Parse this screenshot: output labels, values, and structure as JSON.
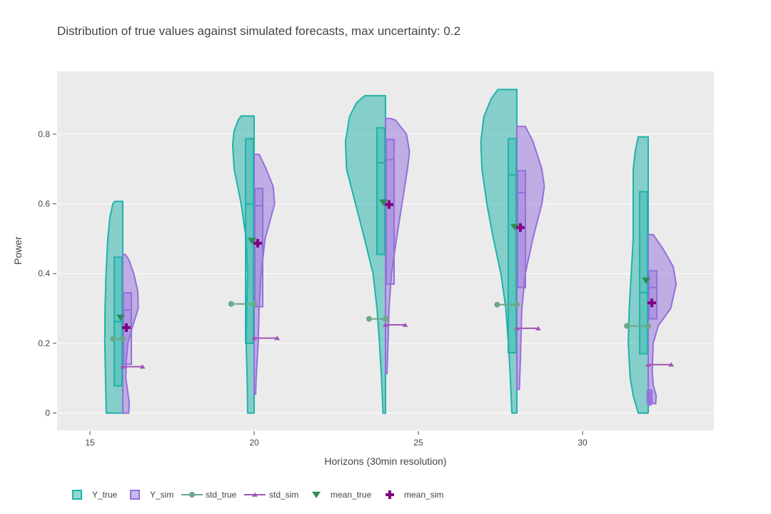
{
  "chart_data": {
    "type": "violin",
    "title": "Distribution of true values against simulated forecasts, max uncertainty: 0.2",
    "xlabel": "Horizons (30min resolution)",
    "ylabel": "Power",
    "xlim": [
      14,
      34
    ],
    "ylim": [
      -0.05,
      0.98
    ],
    "x_ticks": [
      15,
      20,
      25,
      30
    ],
    "y_ticks": [
      0,
      0.2,
      0.4,
      0.6,
      0.8
    ],
    "y_tick_labels": [
      "0",
      "0.2",
      "0.4",
      "0.6",
      "0.8"
    ],
    "grid": true,
    "legend_position": "bottom",
    "colors": {
      "Y_true": "#20b2aa",
      "Y_sim": "#9370db",
      "std_true": "#6aa88a",
      "std_sim": "#a056b8",
      "mean_true": "#2e8b57",
      "mean_sim": "#800080",
      "plot_bg": "#ebebeb"
    },
    "legend": [
      "Y_true",
      "Y_sim",
      "std_true",
      "std_sim",
      "mean_true",
      "mean_sim"
    ],
    "horizons": [
      {
        "x": 16,
        "y_true": {
          "min": 0,
          "max": 0.607,
          "q1": 0.078,
          "median": 0.262,
          "q3": 0.447,
          "density": [
            [
              0,
              0.33
            ],
            [
              0.03,
              0.335
            ],
            [
              0.1,
              0.345
            ],
            [
              0.2,
              0.36
            ],
            [
              0.3,
              0.355
            ],
            [
              0.4,
              0.335
            ],
            [
              0.5,
              0.3
            ],
            [
              0.56,
              0.26
            ],
            [
              0.6,
              0.2
            ],
            [
              0.607,
              0.16
            ]
          ]
        },
        "y_sim": {
          "min": 0,
          "max": 0.455,
          "q1": 0.14,
          "median": 0.295,
          "q3": 0.345,
          "density": [
            [
              0,
              0.12
            ],
            [
              0.03,
              0.13
            ],
            [
              0.06,
              0.1
            ],
            [
              0.1,
              0.06
            ],
            [
              0.15,
              0.07
            ],
            [
              0.2,
              0.1
            ],
            [
              0.25,
              0.2
            ],
            [
              0.3,
              0.31
            ],
            [
              0.35,
              0.3
            ],
            [
              0.4,
              0.22
            ],
            [
              0.44,
              0.12
            ],
            [
              0.455,
              0.05
            ]
          ]
        },
        "std_true": {
          "value": 0.213,
          "x_start": 15.7
        },
        "std_sim": {
          "value": 0.133,
          "x_start": 16.6
        },
        "mean_true": 0.274,
        "mean_sim": 0.245
      },
      {
        "x": 20,
        "y_true": {
          "min": 0,
          "max": 0.852,
          "q1": 0.2,
          "median": 0.6,
          "q3": 0.787,
          "density": [
            [
              0,
              0.13
            ],
            [
              0.1,
              0.14
            ],
            [
              0.2,
              0.16
            ],
            [
              0.3,
              0.15
            ],
            [
              0.4,
              0.13
            ],
            [
              0.5,
              0.16
            ],
            [
              0.6,
              0.26
            ],
            [
              0.7,
              0.4
            ],
            [
              0.77,
              0.43
            ],
            [
              0.81,
              0.4
            ],
            [
              0.84,
              0.32
            ],
            [
              0.852,
              0.26
            ]
          ]
        },
        "y_sim": {
          "min": 0.054,
          "max": 0.742,
          "q1": 0.305,
          "median": 0.595,
          "q3": 0.644,
          "density": [
            [
              0.054,
              0.03
            ],
            [
              0.1,
              0.04
            ],
            [
              0.15,
              0.06
            ],
            [
              0.2,
              0.08
            ],
            [
              0.3,
              0.1
            ],
            [
              0.4,
              0.14
            ],
            [
              0.5,
              0.22
            ],
            [
              0.6,
              0.41
            ],
            [
              0.65,
              0.38
            ],
            [
              0.7,
              0.24
            ],
            [
              0.742,
              0.1
            ]
          ]
        },
        "std_true": {
          "value": 0.313,
          "x_start": 19.3
        },
        "std_sim": {
          "value": 0.215,
          "x_start": 20.7
        },
        "mean_true": 0.494,
        "mean_sim": 0.487
      },
      {
        "x": 24,
        "y_true": {
          "min": 0,
          "max": 0.91,
          "q1": 0.455,
          "median": 0.718,
          "q3": 0.818,
          "density": [
            [
              0,
              0.05
            ],
            [
              0.1,
              0.08
            ],
            [
              0.2,
              0.12
            ],
            [
              0.3,
              0.17
            ],
            [
              0.4,
              0.25
            ],
            [
              0.5,
              0.42
            ],
            [
              0.6,
              0.6
            ],
            [
              0.7,
              0.78
            ],
            [
              0.78,
              0.8
            ],
            [
              0.85,
              0.72
            ],
            [
              0.89,
              0.58
            ],
            [
              0.91,
              0.42
            ]
          ]
        },
        "y_sim": {
          "min": 0.113,
          "max": 0.845,
          "q1": 0.37,
          "median": 0.727,
          "q3": 0.785,
          "density": [
            [
              0.113,
              0.03
            ],
            [
              0.2,
              0.05
            ],
            [
              0.3,
              0.07
            ],
            [
              0.4,
              0.12
            ],
            [
              0.5,
              0.22
            ],
            [
              0.6,
              0.33
            ],
            [
              0.7,
              0.44
            ],
            [
              0.75,
              0.48
            ],
            [
              0.8,
              0.42
            ],
            [
              0.84,
              0.2
            ],
            [
              0.845,
              0.1
            ]
          ]
        },
        "std_true": {
          "value": 0.27,
          "x_start": 23.5
        },
        "std_sim": {
          "value": 0.253,
          "x_start": 24.6
        },
        "mean_true": 0.604,
        "mean_sim": 0.598
      },
      {
        "x": 28,
        "y_true": {
          "min": 0,
          "max": 0.928,
          "q1": 0.173,
          "median": 0.683,
          "q3": 0.787,
          "density": [
            [
              0,
              0.1
            ],
            [
              0.1,
              0.13
            ],
            [
              0.2,
              0.17
            ],
            [
              0.3,
              0.22
            ],
            [
              0.4,
              0.32
            ],
            [
              0.5,
              0.47
            ],
            [
              0.6,
              0.6
            ],
            [
              0.7,
              0.7
            ],
            [
              0.78,
              0.72
            ],
            [
              0.85,
              0.66
            ],
            [
              0.9,
              0.52
            ],
            [
              0.928,
              0.38
            ]
          ]
        },
        "y_sim": {
          "min": 0.068,
          "max": 0.822,
          "q1": 0.36,
          "median": 0.632,
          "q3": 0.695,
          "density": [
            [
              0.068,
              0.05
            ],
            [
              0.15,
              0.07
            ],
            [
              0.2,
              0.08
            ],
            [
              0.3,
              0.1
            ],
            [
              0.4,
              0.17
            ],
            [
              0.5,
              0.32
            ],
            [
              0.6,
              0.5
            ],
            [
              0.65,
              0.55
            ],
            [
              0.7,
              0.5
            ],
            [
              0.78,
              0.32
            ],
            [
              0.822,
              0.17
            ]
          ]
        },
        "std_true": {
          "value": 0.311,
          "x_start": 27.4
        },
        "std_sim": {
          "value": 0.243,
          "x_start": 28.65
        },
        "mean_true": 0.534,
        "mean_sim": 0.532
      },
      {
        "x": 32,
        "y_true": {
          "min": 0,
          "max": 0.792,
          "q1": 0.17,
          "median": 0.345,
          "q3": 0.635,
          "density": [
            [
              0,
              0.2
            ],
            [
              0.05,
              0.3
            ],
            [
              0.1,
              0.36
            ],
            [
              0.2,
              0.4
            ],
            [
              0.3,
              0.38
            ],
            [
              0.4,
              0.34
            ],
            [
              0.5,
              0.3
            ],
            [
              0.6,
              0.3
            ],
            [
              0.7,
              0.3
            ],
            [
              0.75,
              0.26
            ],
            [
              0.792,
              0.2
            ]
          ]
        },
        "y_sim": {
          "min": 0.027,
          "max": 0.512,
          "q1": 0.27,
          "median": 0.36,
          "q3": 0.408,
          "density": [
            [
              0.027,
              0.15
            ],
            [
              0.05,
              0.16
            ],
            [
              0.08,
              0.1
            ],
            [
              0.12,
              0.08
            ],
            [
              0.2,
              0.1
            ],
            [
              0.25,
              0.2
            ],
            [
              0.3,
              0.45
            ],
            [
              0.37,
              0.56
            ],
            [
              0.42,
              0.5
            ],
            [
              0.47,
              0.3
            ],
            [
              0.512,
              0.1
            ]
          ]
        },
        "std_true": {
          "value": 0.25,
          "x_start": 31.35
        },
        "std_sim": {
          "value": 0.139,
          "x_start": 32.7
        },
        "mean_true": 0.38,
        "mean_sim": 0.316,
        "outliers_sim": [
          0.03,
          0.04,
          0.05,
          0.06
        ]
      }
    ]
  }
}
